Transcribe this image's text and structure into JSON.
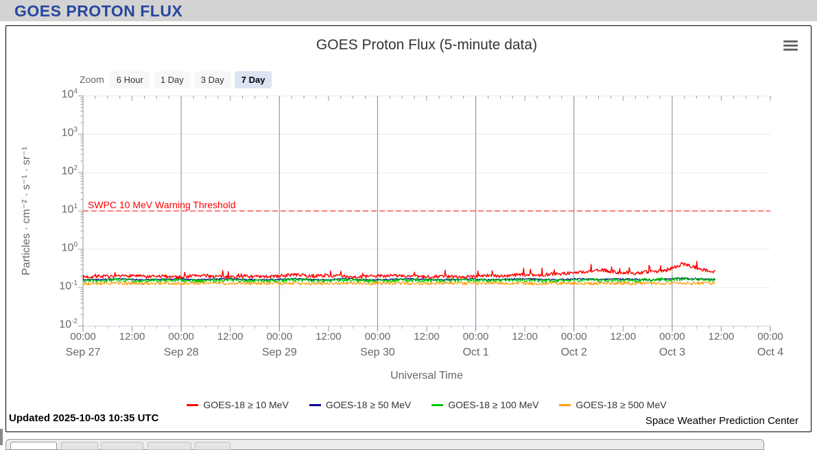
{
  "header": {
    "title": "GOES PROTON FLUX"
  },
  "chart": {
    "title": "GOES Proton Flux (5-minute data)",
    "zoom_label": "Zoom",
    "zoom_buttons": [
      {
        "label": "6 Hour",
        "selected": false
      },
      {
        "label": "1 Day",
        "selected": false
      },
      {
        "label": "3 Day",
        "selected": false
      },
      {
        "label": "7 Day",
        "selected": true
      }
    ],
    "updated": "Updated 2025-10-03 10:35 UTC",
    "attribution": "Space Weather Prediction Center"
  },
  "chart_data": {
    "type": "line",
    "title": "GOES Proton Flux (5-minute data)",
    "xlabel": "Universal Time",
    "ylabel": "Particles · cm⁻² · s⁻¹ · sr⁻¹",
    "y_scale": "log",
    "ylim": [
      0.01,
      10000
    ],
    "y_tick_exponents": [
      4,
      3,
      2,
      1,
      0,
      -1,
      -2
    ],
    "x_hours_range": [
      0,
      168
    ],
    "x_start": "2025-09-27 00:00 UTC",
    "day_labels": [
      "Sep 27",
      "Sep 28",
      "Sep 29",
      "Sep 30",
      "Oct 1",
      "Oct 2",
      "Oct 3",
      "Oct 4"
    ],
    "time_tick_labels": [
      "00:00",
      "12:00"
    ],
    "minor_tick_hours": 3,
    "grid": {
      "vertical_day_lines": true,
      "horizontal_decade_lines": true
    },
    "legend_position": "bottom",
    "threshold": {
      "value": 10,
      "label": "SWPC 10 MeV Warning Threshold",
      "color": "#ff0000",
      "dashed": true
    },
    "data_end_hours": 154.58,
    "sample_step_hours": 0.1667,
    "colors": {
      "grid_vertical": "#888888",
      "grid_horizontal": "#e8e8e8",
      "axis_line": "#ccd6eb",
      "y_axis_line": "#999999",
      "tick": "#999999",
      "minor_tick": "#bbbbbb"
    },
    "series": [
      {
        "name": "GOES-18 ≥ 10 MeV",
        "color": "#ff0000",
        "noise": 0.1,
        "spike_prob": 0.05,
        "spike_max": 0.45,
        "control_values": [
          0.19,
          0.2,
          0.19,
          0.21,
          0.19,
          0.2,
          0.19,
          0.21,
          0.2,
          0.19,
          0.2,
          0.19,
          0.2,
          0.22,
          0.2,
          0.21,
          0.2,
          0.19,
          0.2,
          0.21,
          0.2,
          0.19,
          0.2,
          0.19,
          0.2,
          0.21,
          0.2,
          0.22,
          0.21,
          0.23,
          0.24,
          0.26,
          0.29,
          0.25,
          0.24,
          0.26,
          0.28,
          0.42,
          0.31,
          0.26
        ]
      },
      {
        "name": "GOES-18 ≥ 50 MeV",
        "color": "#000099",
        "noise": 0.045,
        "control_values": [
          0.165,
          0.16,
          0.17,
          0.165,
          0.16,
          0.165,
          0.17,
          0.16,
          0.165,
          0.17,
          0.165,
          0.16,
          0.165,
          0.17,
          0.165,
          0.16,
          0.17,
          0.165,
          0.16,
          0.165,
          0.17,
          0.165,
          0.16,
          0.165,
          0.17,
          0.16,
          0.165,
          0.17,
          0.165,
          0.16,
          0.165,
          0.17,
          0.165,
          0.17,
          0.165,
          0.16,
          0.17,
          0.175,
          0.17,
          0.165
        ]
      },
      {
        "name": "GOES-18 ≥ 100 MeV",
        "color": "#00c800",
        "noise": 0.11,
        "control_values": [
          0.155,
          0.15,
          0.16,
          0.155,
          0.15,
          0.155,
          0.16,
          0.15,
          0.155,
          0.16,
          0.155,
          0.15,
          0.155,
          0.16,
          0.155,
          0.15,
          0.16,
          0.155,
          0.15,
          0.155,
          0.16,
          0.155,
          0.15,
          0.155,
          0.16,
          0.15,
          0.155,
          0.16,
          0.155,
          0.15,
          0.155,
          0.16,
          0.155,
          0.16,
          0.155,
          0.16,
          0.165,
          0.17,
          0.165,
          0.16
        ]
      },
      {
        "name": "GOES-18 ≥ 500 MeV",
        "color": "#ff9f0c",
        "noise": 0.09,
        "control_values": [
          0.13,
          0.128,
          0.132,
          0.13,
          0.127,
          0.131,
          0.13,
          0.128,
          0.132,
          0.13,
          0.128,
          0.131,
          0.13,
          0.132,
          0.128,
          0.13,
          0.131,
          0.128,
          0.13,
          0.132,
          0.13,
          0.128,
          0.131,
          0.13,
          0.128,
          0.132,
          0.13,
          0.131,
          0.128,
          0.13,
          0.132,
          0.13,
          0.128,
          0.131,
          0.13,
          0.128,
          0.132,
          0.13,
          0.131,
          0.13
        ]
      }
    ]
  }
}
